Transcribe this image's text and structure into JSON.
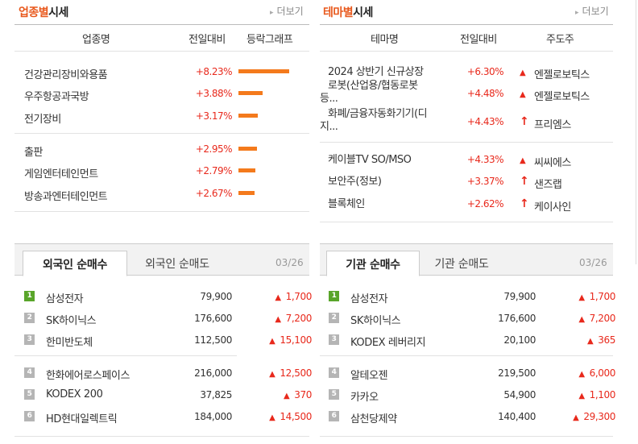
{
  "industry": {
    "title_orange": "업종별",
    "title_black": "시세",
    "more": "더보기",
    "headers": [
      "업종명",
      "전일대비",
      "등락그래프"
    ],
    "rows": [
      {
        "name": "건강관리장비와용품",
        "pct": "+8.23%",
        "value": 8.23
      },
      {
        "name": "우주항공과국방",
        "pct": "+3.88%",
        "value": 3.88
      },
      {
        "name": "전기장비",
        "pct": "+3.17%",
        "value": 3.17
      },
      {
        "name": "출판",
        "pct": "+2.95%",
        "value": 2.95
      },
      {
        "name": "게임엔터테인먼트",
        "pct": "+2.79%",
        "value": 2.79
      },
      {
        "name": "방송과엔터테인먼트",
        "pct": "+2.67%",
        "value": 2.67
      }
    ]
  },
  "theme": {
    "title_orange": "테마별",
    "title_black": "시세",
    "more": "더보기",
    "headers": [
      "테마명",
      "전일대비",
      "주도주"
    ],
    "rows": [
      {
        "name": "2024 상반기 신규상장",
        "name2": "",
        "pct": "+6.30%",
        "leader": "엔젤로보틱스",
        "icon": "triangle-up"
      },
      {
        "name": "로봇(산업용/협동로봇",
        "name2": "등...",
        "pct": "+4.48%",
        "leader": "엔젤로보틱스",
        "icon": "triangle-up"
      },
      {
        "name": "화폐/금융자동화기기(디",
        "name2": "지...",
        "pct": "+4.43%",
        "leader": "프리엠스",
        "icon": "arrow-up"
      },
      {
        "name": "케이블TV SO/MSO",
        "name2": "",
        "pct": "+4.33%",
        "leader": "씨씨에스",
        "icon": "triangle-up"
      },
      {
        "name": "보안주(정보)",
        "name2": "",
        "pct": "+3.37%",
        "leader": "샌즈랩",
        "icon": "arrow-up"
      },
      {
        "name": "블록체인",
        "name2": "",
        "pct": "+2.62%",
        "leader": "케이사인",
        "icon": "arrow-up"
      }
    ]
  },
  "foreign": {
    "tab_active": "외국인 순매수",
    "tab_inactive": "외국인 순매도",
    "date": "03/26",
    "rows": [
      {
        "rank": "1",
        "name": "삼성전자",
        "price": "79,900",
        "change": "1,700"
      },
      {
        "rank": "2",
        "name": "SK하이닉스",
        "price": "176,600",
        "change": "7,200"
      },
      {
        "rank": "3",
        "name": "한미반도체",
        "price": "112,500",
        "change": "15,100"
      },
      {
        "rank": "4",
        "name": "한화에어로스페이스",
        "price": "216,000",
        "change": "12,500"
      },
      {
        "rank": "5",
        "name": "KODEX 200",
        "price": "37,825",
        "change": "370"
      },
      {
        "rank": "6",
        "name": "HD현대일렉트릭",
        "price": "184,000",
        "change": "14,500"
      }
    ]
  },
  "institution": {
    "tab_active": "기관 순매수",
    "tab_inactive": "기관 순매도",
    "date": "03/26",
    "rows": [
      {
        "rank": "1",
        "name": "삼성전자",
        "price": "79,900",
        "change": "1,700"
      },
      {
        "rank": "2",
        "name": "SK하이닉스",
        "price": "176,600",
        "change": "7,200"
      },
      {
        "rank": "3",
        "name": "KODEX 레버리지",
        "price": "20,100",
        "change": "365"
      },
      {
        "rank": "4",
        "name": "알테오젠",
        "price": "219,500",
        "change": "6,000"
      },
      {
        "rank": "5",
        "name": "카카오",
        "price": "54,900",
        "change": "1,100"
      },
      {
        "rank": "6",
        "name": "삼천당제약",
        "price": "140,400",
        "change": "29,300"
      }
    ]
  },
  "colors": {
    "accent": "#e8581c",
    "up": "#e8291c",
    "bar": "#f47a1c",
    "rank_top": "#59a52a",
    "rank_other": "#b5b5b5"
  }
}
